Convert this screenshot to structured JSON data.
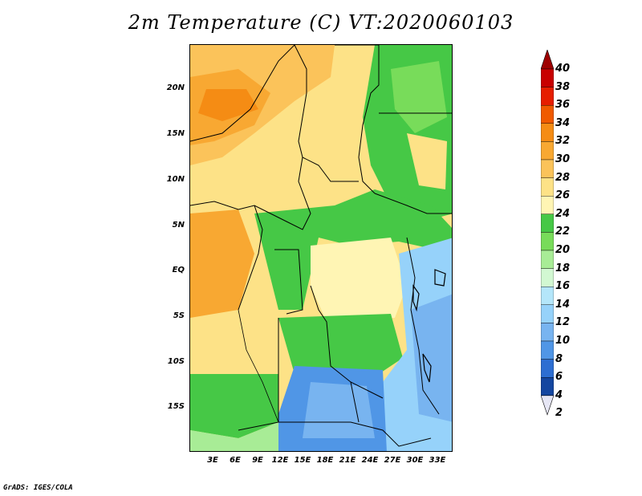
{
  "title": "2m Temperature (C) VT:2020060103",
  "credit": "GrADS: IGES/COLA",
  "map": {
    "lat_labels": [
      "20N",
      "15N",
      "10N",
      "5N",
      "EQ",
      "5S",
      "10S",
      "15S"
    ],
    "lon_labels": [
      "3E",
      "6E",
      "9E",
      "12E",
      "15E",
      "18E",
      "21E",
      "24E",
      "27E",
      "30E",
      "33E"
    ]
  },
  "colorbar": {
    "labels": [
      "40",
      "38",
      "36",
      "34",
      "32",
      "30",
      "28",
      "26",
      "24",
      "22",
      "20",
      "18",
      "16",
      "14",
      "12",
      "10",
      "8",
      "6",
      "4",
      "2"
    ],
    "colors": [
      "#9e0000",
      "#c80000",
      "#e61e00",
      "#f05a00",
      "#f58c14",
      "#f8a832",
      "#fbc35a",
      "#fde287",
      "#fff5b4",
      "#46c846",
      "#78dc5a",
      "#a8ec96",
      "#d2f8d2",
      "#b4e6fa",
      "#96d2fa",
      "#78b4f0",
      "#5096e6",
      "#2d6ed2",
      "#1446a0",
      "#0f1e78"
    ],
    "top_arrow_color": "#9e0000",
    "bottom_arrow_color": "#e6e6f5"
  },
  "legend_colors": {
    "hot": "#f58c14",
    "warm": "#fbc35a",
    "mild": "#fde287",
    "green": "#46c846",
    "lightgreen": "#a8ec96",
    "cool": "#96d2fa",
    "cold": "#5096e6"
  }
}
